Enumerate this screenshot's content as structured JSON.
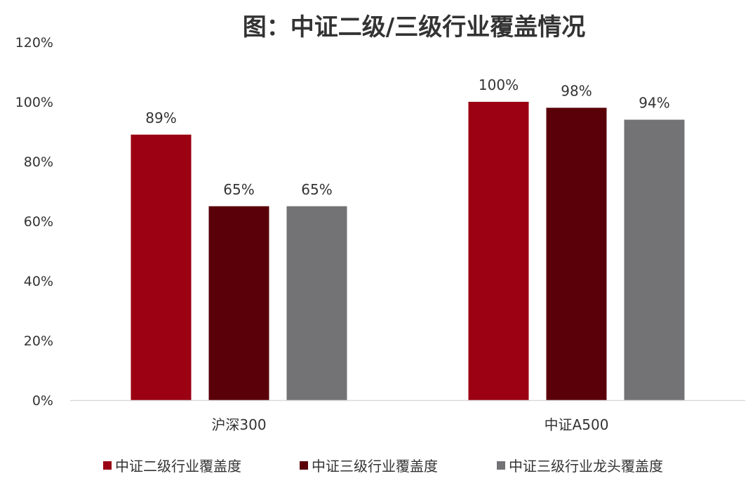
{
  "chart_data": {
    "type": "bar",
    "title": "图：中证二级/三级行业覆盖情况",
    "categories": [
      "沪深300",
      "中证A500"
    ],
    "series": [
      {
        "name": "中证二级行业覆盖度",
        "color": "#9b0013",
        "values": [
          89,
          100
        ],
        "labels": [
          "89%",
          "100%"
        ]
      },
      {
        "name": "中证三级行业覆盖度",
        "color": "#5a0009",
        "values": [
          65,
          98
        ],
        "labels": [
          "65%",
          "98%"
        ]
      },
      {
        "name": "中证三级行业龙头覆盖度",
        "color": "#737376",
        "values": [
          65,
          94
        ],
        "labels": [
          "65%",
          "94%"
        ]
      }
    ],
    "yticks": [
      "0%",
      "20%",
      "40%",
      "60%",
      "80%",
      "100%",
      "120%"
    ],
    "ylim": [
      0,
      120
    ],
    "grid": false,
    "legend": "bottom"
  }
}
